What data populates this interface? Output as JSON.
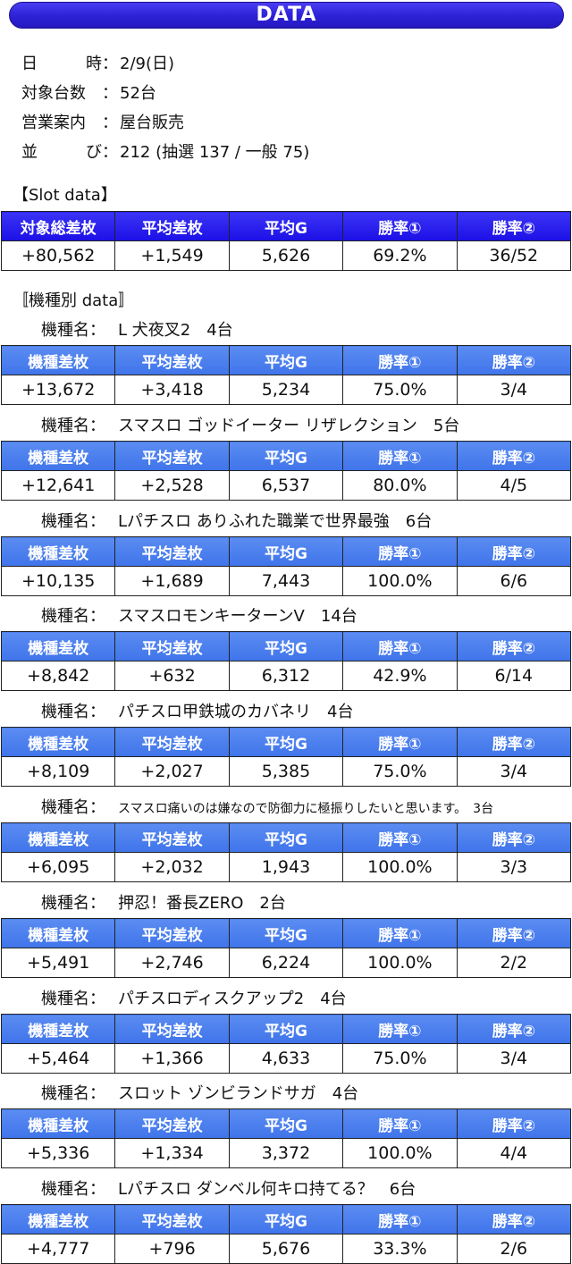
{
  "banner": "DATA",
  "info": [
    {
      "label_a": "日",
      "label_b": "時：",
      "value": "2/9(日)"
    },
    {
      "label_a": "対象台数",
      "label_b": "：",
      "value": "52台"
    },
    {
      "label_a": "営業案内",
      "label_b": "：",
      "value": "屋台販売"
    },
    {
      "label_a": "並",
      "label_b": "び：",
      "value": "212 (抽選 137 / 一般 75)"
    }
  ],
  "slot_section": "【Slot data】",
  "slot_headers": [
    "対象総差枚",
    "平均差枚",
    "平均G",
    "勝率①",
    "勝率②"
  ],
  "slot_row": [
    "+80,562",
    "+1,549",
    "5,626",
    "69.2%",
    "36/52"
  ],
  "model_section": "〚機種別 data〛",
  "model_label": "機種名：",
  "model_headers": [
    "機種差枚",
    "平均差枚",
    "平均G",
    "勝率①",
    "勝率②"
  ],
  "models": [
    {
      "name": "L 犬夜叉2　4台",
      "row": [
        "+13,672",
        "+3,418",
        "5,234",
        "75.0%",
        "3/4"
      ]
    },
    {
      "name": "スマスロ ゴッドイーター リザレクション　5台",
      "row": [
        "+12,641",
        "+2,528",
        "6,537",
        "80.0%",
        "4/5"
      ]
    },
    {
      "name": "Lパチスロ ありふれた職業で世界最強　6台",
      "row": [
        "+10,135",
        "+1,689",
        "7,443",
        "100.0%",
        "6/6"
      ]
    },
    {
      "name": "スマスロモンキーターンV　14台",
      "row": [
        "+8,842",
        "+632",
        "6,312",
        "42.9%",
        "6/14"
      ]
    },
    {
      "name": "パチスロ甲鉄城のカバネリ　4台",
      "row": [
        "+8,109",
        "+2,027",
        "5,385",
        "75.0%",
        "3/4"
      ]
    },
    {
      "name": "スマスロ痛いのは嫌なので防御力に極振りしたいと思います。　3台",
      "row": [
        "+6,095",
        "+2,032",
        "1,943",
        "100.0%",
        "3/3"
      ]
    },
    {
      "name": "押忍！番長ZERO　2台",
      "row": [
        "+5,491",
        "+2,746",
        "6,224",
        "100.0%",
        "2/2"
      ]
    },
    {
      "name": "パチスロディスクアップ2　4台",
      "row": [
        "+5,464",
        "+1,366",
        "4,633",
        "75.0%",
        "3/4"
      ]
    },
    {
      "name": "スロット ゾンビランドサガ　4台",
      "row": [
        "+5,336",
        "+1,334",
        "3,372",
        "100.0%",
        "4/4"
      ]
    },
    {
      "name": "Lパチスロ ダンベル何キロ持てる？　6台",
      "row": [
        "+4,777",
        "+796",
        "5,676",
        "33.3%",
        "2/6"
      ]
    }
  ]
}
